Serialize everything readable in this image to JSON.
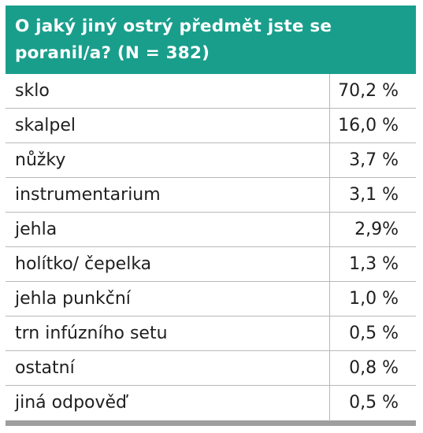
{
  "table": {
    "title": "O jaký jiný ostrý předmět jste se poranil/a? (N = 382)",
    "rows": [
      {
        "label": "sklo",
        "value": "70,2 %"
      },
      {
        "label": "skalpel",
        "value": "16,0 %"
      },
      {
        "label": "nůžky",
        "value": "3,7 %"
      },
      {
        "label": "instrumentarium",
        "value": "3,1 %"
      },
      {
        "label": "jehla",
        "value": "2,9%"
      },
      {
        "label": "holítko/ čepelka",
        "value": "1,3 %"
      },
      {
        "label": "jehla punkční",
        "value": "1,0 %"
      },
      {
        "label": "trn infúzního setu",
        "value": "0,5 %"
      },
      {
        "label": "ostatní",
        "value": "0,8 %"
      },
      {
        "label": "jiná odpověď",
        "value": "0,5 %"
      }
    ],
    "colors": {
      "header_background": "#1a9e8c",
      "header_text": "#ffffff",
      "row_border": "#b8b8b8",
      "bottom_bar": "#9e9e9e"
    }
  }
}
